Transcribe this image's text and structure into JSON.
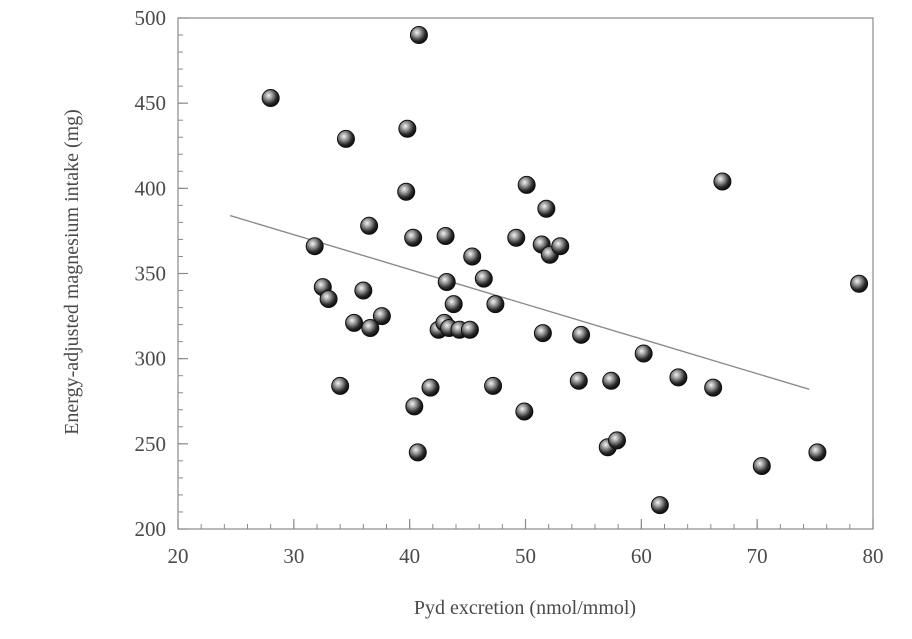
{
  "chart_data": {
    "type": "scatter",
    "title": "",
    "xlabel": "Pyd excretion (nmol/mmol)",
    "ylabel": "Energy-adjusted magnesium intake (mg)",
    "xlim": [
      20,
      80
    ],
    "ylim": [
      200,
      500
    ],
    "xticks": [
      20,
      30,
      40,
      50,
      60,
      70,
      80
    ],
    "yticks": [
      200,
      250,
      300,
      350,
      400,
      450,
      500
    ],
    "xminor": 2,
    "yminor": 10,
    "grid": false,
    "legend": "none",
    "marker_color": "#2a2a2a",
    "line_color": "#8c8c8c",
    "points": [
      {
        "x": 28.0,
        "y": 453
      },
      {
        "x": 34.5,
        "y": 429
      },
      {
        "x": 40.8,
        "y": 490
      },
      {
        "x": 39.8,
        "y": 435
      },
      {
        "x": 39.7,
        "y": 398
      },
      {
        "x": 31.8,
        "y": 366
      },
      {
        "x": 36.5,
        "y": 378
      },
      {
        "x": 40.3,
        "y": 371
      },
      {
        "x": 43.1,
        "y": 372
      },
      {
        "x": 32.5,
        "y": 342
      },
      {
        "x": 33.0,
        "y": 335
      },
      {
        "x": 36.0,
        "y": 340
      },
      {
        "x": 35.2,
        "y": 321
      },
      {
        "x": 36.6,
        "y": 318
      },
      {
        "x": 37.6,
        "y": 325
      },
      {
        "x": 34.0,
        "y": 284
      },
      {
        "x": 43.2,
        "y": 345
      },
      {
        "x": 43.8,
        "y": 332
      },
      {
        "x": 42.5,
        "y": 317
      },
      {
        "x": 43.0,
        "y": 321
      },
      {
        "x": 43.4,
        "y": 318
      },
      {
        "x": 44.3,
        "y": 317
      },
      {
        "x": 45.2,
        "y": 317
      },
      {
        "x": 41.8,
        "y": 283
      },
      {
        "x": 40.4,
        "y": 272
      },
      {
        "x": 40.7,
        "y": 245
      },
      {
        "x": 45.4,
        "y": 360
      },
      {
        "x": 46.4,
        "y": 347
      },
      {
        "x": 47.4,
        "y": 332
      },
      {
        "x": 47.2,
        "y": 284
      },
      {
        "x": 49.2,
        "y": 371
      },
      {
        "x": 50.1,
        "y": 402
      },
      {
        "x": 51.8,
        "y": 388
      },
      {
        "x": 51.4,
        "y": 367
      },
      {
        "x": 52.1,
        "y": 361
      },
      {
        "x": 53.0,
        "y": 366
      },
      {
        "x": 51.5,
        "y": 315
      },
      {
        "x": 54.8,
        "y": 314
      },
      {
        "x": 49.9,
        "y": 269
      },
      {
        "x": 54.6,
        "y": 287
      },
      {
        "x": 57.4,
        "y": 287
      },
      {
        "x": 60.2,
        "y": 303
      },
      {
        "x": 57.1,
        "y": 248
      },
      {
        "x": 57.9,
        "y": 252
      },
      {
        "x": 61.6,
        "y": 214
      },
      {
        "x": 63.2,
        "y": 289
      },
      {
        "x": 66.2,
        "y": 283
      },
      {
        "x": 67.0,
        "y": 404
      },
      {
        "x": 70.4,
        "y": 237
      },
      {
        "x": 75.2,
        "y": 245
      },
      {
        "x": 78.8,
        "y": 344
      }
    ],
    "trendline": {
      "x": [
        24.5,
        74.5
      ],
      "y": [
        384,
        282
      ]
    }
  }
}
